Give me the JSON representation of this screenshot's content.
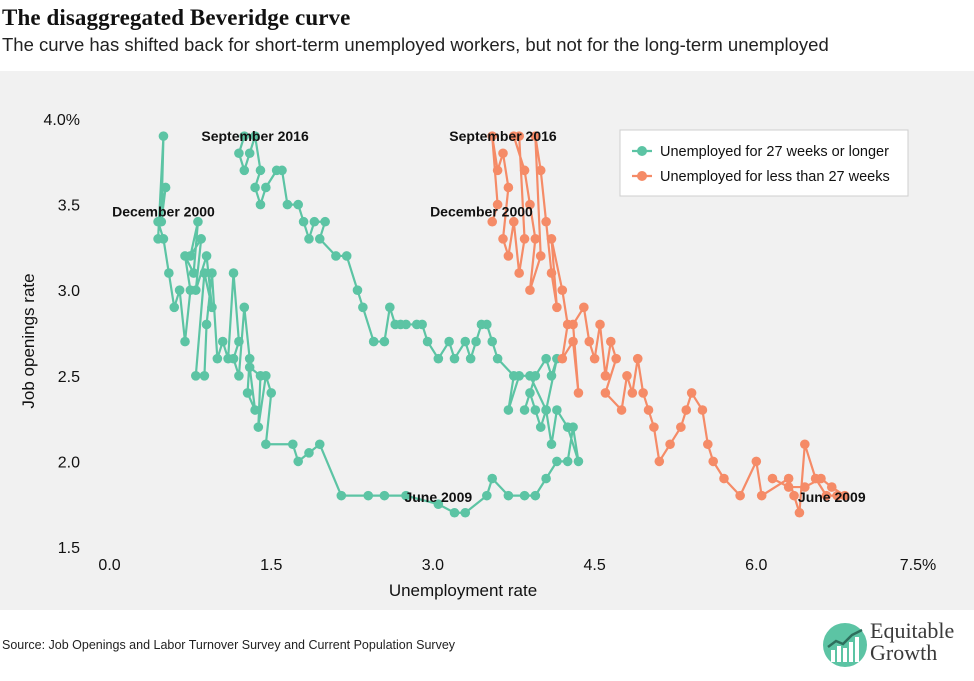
{
  "header": {
    "title": "The disaggregated Beveridge curve",
    "subtitle": "The curve has shifted back for short-term unemployed workers, but not for the long-term unemployed"
  },
  "footer": {
    "source": "Source: Job Openings and Labor Turnover Survey and Current Population Survey",
    "logo_line1": "Equitable",
    "logo_line2": "Growth",
    "logo_icon": "growth-chart-icon"
  },
  "colors": {
    "long_term": "#5cc4a4",
    "short_term": "#f58b67",
    "background": "#f1f1f1"
  },
  "chart_data": {
    "type": "scatter",
    "xlabel": "Unemployment rate",
    "ylabel": "Job openings rate",
    "xlim": [
      -0.2,
      7.5
    ],
    "ylim": [
      1.5,
      4.0
    ],
    "x_ticks": [
      {
        "value": 0.0,
        "label": "0.0"
      },
      {
        "value": 1.5,
        "label": "1.5"
      },
      {
        "value": 3.0,
        "label": "3.0"
      },
      {
        "value": 4.5,
        "label": "4.5"
      },
      {
        "value": 6.0,
        "label": "6.0"
      },
      {
        "value": 7.5,
        "label": "7.5%"
      }
    ],
    "y_ticks": [
      {
        "value": 1.5,
        "label": "1.5"
      },
      {
        "value": 2.0,
        "label": "2.0"
      },
      {
        "value": 2.5,
        "label": "2.5"
      },
      {
        "value": 3.0,
        "label": "3.0"
      },
      {
        "value": 3.5,
        "label": "3.5"
      },
      {
        "value": 4.0,
        "label": "4.0%"
      }
    ],
    "legend_position": "top-right",
    "series": [
      {
        "name": "Unemployed for 27 weeks or longer",
        "color": "#5cc4a4",
        "points": [
          [
            0.45,
            3.3
          ],
          [
            0.5,
            3.9
          ],
          [
            0.48,
            3.4
          ],
          [
            0.52,
            3.6
          ],
          [
            0.45,
            3.4
          ],
          [
            0.5,
            3.3
          ],
          [
            0.55,
            3.1
          ],
          [
            0.6,
            2.9
          ],
          [
            0.65,
            3.0
          ],
          [
            0.7,
            2.7
          ],
          [
            0.75,
            3.0
          ],
          [
            0.7,
            3.2
          ],
          [
            0.78,
            3.1
          ],
          [
            0.82,
            3.4
          ],
          [
            0.75,
            3.2
          ],
          [
            0.85,
            3.3
          ],
          [
            0.8,
            3.0
          ],
          [
            0.9,
            3.2
          ],
          [
            0.95,
            2.9
          ],
          [
            0.88,
            3.1
          ],
          [
            0.8,
            2.5
          ],
          [
            0.88,
            2.5
          ],
          [
            0.9,
            2.8
          ],
          [
            0.95,
            3.1
          ],
          [
            1.0,
            2.6
          ],
          [
            1.05,
            2.7
          ],
          [
            1.1,
            2.6
          ],
          [
            1.15,
            3.1
          ],
          [
            1.2,
            2.7
          ],
          [
            1.15,
            2.6
          ],
          [
            1.2,
            2.5
          ],
          [
            1.25,
            2.9
          ],
          [
            1.3,
            2.6
          ],
          [
            1.28,
            2.4
          ],
          [
            1.35,
            2.3
          ],
          [
            1.3,
            2.55
          ],
          [
            1.4,
            2.5
          ],
          [
            1.38,
            2.2
          ],
          [
            1.45,
            2.5
          ],
          [
            1.5,
            2.4
          ],
          [
            1.45,
            2.1
          ],
          [
            1.7,
            2.1
          ],
          [
            1.75,
            2.0
          ],
          [
            1.85,
            2.05
          ],
          [
            1.95,
            2.1
          ],
          [
            2.15,
            1.8
          ],
          [
            2.4,
            1.8
          ],
          [
            2.55,
            1.8
          ],
          [
            2.75,
            1.8
          ],
          [
            3.05,
            1.75
          ],
          [
            3.2,
            1.7
          ],
          [
            3.3,
            1.7
          ],
          [
            3.5,
            1.8
          ],
          [
            3.55,
            1.9
          ],
          [
            3.7,
            1.8
          ],
          [
            3.85,
            1.8
          ],
          [
            3.95,
            1.8
          ],
          [
            4.05,
            1.9
          ],
          [
            4.15,
            2.0
          ],
          [
            4.25,
            2.0
          ],
          [
            4.3,
            2.2
          ],
          [
            4.35,
            2.0
          ],
          [
            4.25,
            2.2
          ],
          [
            4.15,
            2.3
          ],
          [
            4.1,
            2.1
          ],
          [
            4.05,
            2.3
          ],
          [
            4.0,
            2.2
          ],
          [
            3.95,
            2.3
          ],
          [
            3.9,
            2.4
          ],
          [
            3.85,
            2.3
          ],
          [
            3.95,
            2.5
          ],
          [
            4.05,
            2.6
          ],
          [
            4.1,
            2.5
          ],
          [
            4.15,
            2.6
          ],
          [
            4.05,
            2.3
          ],
          [
            3.9,
            2.5
          ],
          [
            3.8,
            2.5
          ],
          [
            3.7,
            2.3
          ],
          [
            3.75,
            2.5
          ],
          [
            3.6,
            2.6
          ],
          [
            3.55,
            2.7
          ],
          [
            3.5,
            2.8
          ],
          [
            3.45,
            2.8
          ],
          [
            3.4,
            2.7
          ],
          [
            3.35,
            2.6
          ],
          [
            3.3,
            2.7
          ],
          [
            3.2,
            2.6
          ],
          [
            3.15,
            2.7
          ],
          [
            3.05,
            2.6
          ],
          [
            2.95,
            2.7
          ],
          [
            2.9,
            2.8
          ],
          [
            2.85,
            2.8
          ],
          [
            2.75,
            2.8
          ],
          [
            2.7,
            2.8
          ],
          [
            2.65,
            2.8
          ],
          [
            2.6,
            2.9
          ],
          [
            2.55,
            2.7
          ],
          [
            2.45,
            2.7
          ],
          [
            2.35,
            2.9
          ],
          [
            2.3,
            3.0
          ],
          [
            2.2,
            3.2
          ],
          [
            2.1,
            3.2
          ],
          [
            1.95,
            3.3
          ],
          [
            2.0,
            3.4
          ],
          [
            1.9,
            3.4
          ],
          [
            1.85,
            3.3
          ],
          [
            1.8,
            3.4
          ],
          [
            1.75,
            3.5
          ],
          [
            1.65,
            3.5
          ],
          [
            1.6,
            3.7
          ],
          [
            1.55,
            3.7
          ],
          [
            1.45,
            3.6
          ],
          [
            1.4,
            3.5
          ],
          [
            1.35,
            3.6
          ],
          [
            1.4,
            3.7
          ],
          [
            1.35,
            3.9
          ],
          [
            1.3,
            3.8
          ],
          [
            1.25,
            3.7
          ],
          [
            1.2,
            3.8
          ],
          [
            1.25,
            3.9
          ]
        ]
      },
      {
        "name": "Unemployed for less than 27 weeks",
        "color": "#f58b67",
        "points": [
          [
            3.55,
            3.4
          ],
          [
            3.6,
            3.5
          ],
          [
            3.55,
            3.9
          ],
          [
            3.6,
            3.7
          ],
          [
            3.65,
            3.8
          ],
          [
            3.7,
            3.6
          ],
          [
            3.65,
            3.3
          ],
          [
            3.7,
            3.2
          ],
          [
            3.75,
            3.4
          ],
          [
            3.8,
            3.1
          ],
          [
            3.85,
            3.3
          ],
          [
            3.8,
            3.9
          ],
          [
            3.75,
            3.9
          ],
          [
            3.85,
            3.7
          ],
          [
            3.9,
            3.5
          ],
          [
            3.95,
            3.3
          ],
          [
            3.9,
            3.0
          ],
          [
            4.0,
            3.2
          ],
          [
            3.95,
            3.9
          ],
          [
            4.0,
            3.7
          ],
          [
            4.05,
            3.4
          ],
          [
            4.1,
            3.1
          ],
          [
            4.15,
            2.9
          ],
          [
            4.1,
            3.3
          ],
          [
            4.2,
            3.0
          ],
          [
            4.25,
            2.8
          ],
          [
            4.2,
            2.6
          ],
          [
            4.3,
            2.7
          ],
          [
            4.35,
            2.4
          ],
          [
            4.3,
            2.8
          ],
          [
            4.4,
            2.9
          ],
          [
            4.45,
            2.7
          ],
          [
            4.5,
            2.6
          ],
          [
            4.55,
            2.8
          ],
          [
            4.6,
            2.5
          ],
          [
            4.65,
            2.7
          ],
          [
            4.7,
            2.6
          ],
          [
            4.6,
            2.4
          ],
          [
            4.75,
            2.3
          ],
          [
            4.8,
            2.5
          ],
          [
            4.85,
            2.4
          ],
          [
            4.9,
            2.6
          ],
          [
            4.95,
            2.4
          ],
          [
            5.0,
            2.3
          ],
          [
            5.05,
            2.2
          ],
          [
            5.1,
            2.0
          ],
          [
            5.2,
            2.1
          ],
          [
            5.3,
            2.2
          ],
          [
            5.35,
            2.3
          ],
          [
            5.4,
            2.4
          ],
          [
            5.5,
            2.3
          ],
          [
            5.55,
            2.1
          ],
          [
            5.6,
            2.0
          ],
          [
            5.7,
            1.9
          ],
          [
            5.85,
            1.8
          ],
          [
            6.0,
            2.0
          ],
          [
            6.05,
            1.8
          ],
          [
            6.3,
            1.9
          ],
          [
            6.35,
            1.8
          ],
          [
            6.4,
            1.7
          ],
          [
            6.45,
            2.1
          ],
          [
            6.55,
            1.9
          ],
          [
            6.65,
            1.8
          ],
          [
            6.75,
            1.8
          ],
          [
            6.82,
            1.8
          ],
          [
            6.7,
            1.85
          ],
          [
            6.6,
            1.9
          ],
          [
            6.45,
            1.85
          ],
          [
            6.3,
            1.85
          ],
          [
            6.15,
            1.9
          ]
        ]
      }
    ],
    "annotations": [
      {
        "text": "December 2000",
        "x": 0.5,
        "y": 3.42
      },
      {
        "text": "September 2016",
        "x": 1.35,
        "y": 3.86
      },
      {
        "text": "June 2009",
        "x": 3.05,
        "y": 1.75
      },
      {
        "text": "September 2016",
        "x": 3.65,
        "y": 3.86
      },
      {
        "text": "December 2000",
        "x": 3.45,
        "y": 3.42
      },
      {
        "text": "June 2009",
        "x": 6.7,
        "y": 1.75
      }
    ]
  }
}
